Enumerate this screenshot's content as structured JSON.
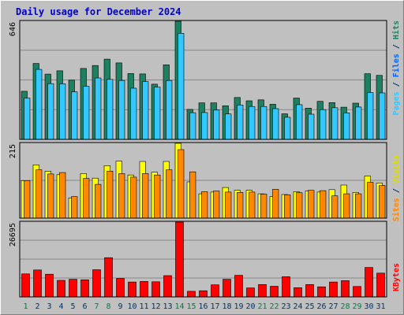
{
  "chart_data": {
    "type": "bar",
    "title": "Daily usage for December 2024",
    "categories": [
      "1",
      "2",
      "3",
      "4",
      "5",
      "6",
      "7",
      "8",
      "9",
      "10",
      "11",
      "12",
      "13",
      "14",
      "15",
      "16",
      "17",
      "18",
      "19",
      "20",
      "21",
      "22",
      "23",
      "24",
      "25",
      "26",
      "27",
      "28",
      "29",
      "30",
      "31"
    ],
    "weekend_days": [
      "1",
      "7",
      "8",
      "14",
      "15",
      "21",
      "22",
      "28",
      "29"
    ],
    "panels": [
      {
        "id": "hits-pages",
        "ymax_label": "646",
        "ymax": 646,
        "series": [
          {
            "name": "Hits",
            "color": "#1d8060",
            "values": [
              263,
              415,
              357,
              375,
              324,
              388,
              404,
              439,
              418,
              360,
              358,
              302,
              408,
              646,
              164,
              200,
              200,
              184,
              229,
              211,
              216,
              192,
              140,
              226,
              171,
              208,
              201,
              176,
              198,
              359,
              350
            ]
          },
          {
            "name": "Pages",
            "color": "#33c8ff",
            "values": [
              226,
              383,
              305,
              304,
              260,
              290,
              336,
              328,
              322,
              280,
              316,
              286,
              322,
              580,
              146,
              147,
              160,
              139,
              188,
              180,
              180,
              168,
              121,
              190,
              138,
              163,
              173,
              145,
              177,
              256,
              254
            ]
          }
        ]
      },
      {
        "id": "visits-sites",
        "ymax_label": "215",
        "ymax": 215,
        "series": [
          {
            "name": "Visits",
            "color": "#ffff00",
            "values": [
              108,
              153,
              135,
              125,
              58,
              128,
              115,
              151,
              164,
              124,
              163,
              132,
              163,
              215,
              104,
              70,
              75,
              88,
              80,
              80,
              70,
              62,
              68,
              76,
              78,
              75,
              82,
              95,
              74,
              121,
              101
            ]
          },
          {
            "name": "Sites",
            "color": "#ff8800",
            "values": [
              108,
              139,
              127,
              131,
              62,
              114,
              97,
              135,
              128,
              118,
              128,
              124,
              139,
              197,
              133,
              76,
              78,
              75,
              74,
              75,
              69,
              83,
              67,
              73,
              80,
              79,
              64,
              70,
              70,
              103,
              94
            ]
          }
        ]
      },
      {
        "id": "kbytes",
        "ymax_label": "26695",
        "ymax": 26695,
        "series": [
          {
            "name": "KBytes",
            "color": "#ff0000",
            "values": [
              8200,
              9600,
              8100,
              5900,
              6300,
              6100,
              9700,
              14000,
              6600,
              5300,
              5500,
              5400,
              7600,
              26695,
              2000,
              2200,
              4300,
              6300,
              7700,
              3200,
              4400,
              3800,
              7200,
              3300,
              4400,
              3600,
              5300,
              5800,
              3700,
              10500,
              8500
            ]
          }
        ]
      }
    ],
    "right_labels": {
      "panel1": [
        {
          "text": "Pages",
          "color": "#33c8ff"
        },
        {
          "text": " / ",
          "color": "#003366"
        },
        {
          "text": "Files",
          "color": "#0066ff"
        },
        {
          "text": " / ",
          "color": "#003366"
        },
        {
          "text": "Hits",
          "color": "#1d8060"
        }
      ],
      "panel2": [
        {
          "text": "Sites",
          "color": "#ff8800"
        },
        {
          "text": " / ",
          "color": "#003366"
        },
        {
          "text": "Visits",
          "color": "#dddd00"
        }
      ],
      "panel3": [
        {
          "text": "KBytes",
          "color": "#ff0000"
        }
      ]
    },
    "colors": {
      "title": "#0000cc",
      "weekday_label": "#003366",
      "weekend_label": "#008040",
      "plot_bg": "#c0c0c0",
      "grid": "#888888"
    },
    "grid": true
  }
}
